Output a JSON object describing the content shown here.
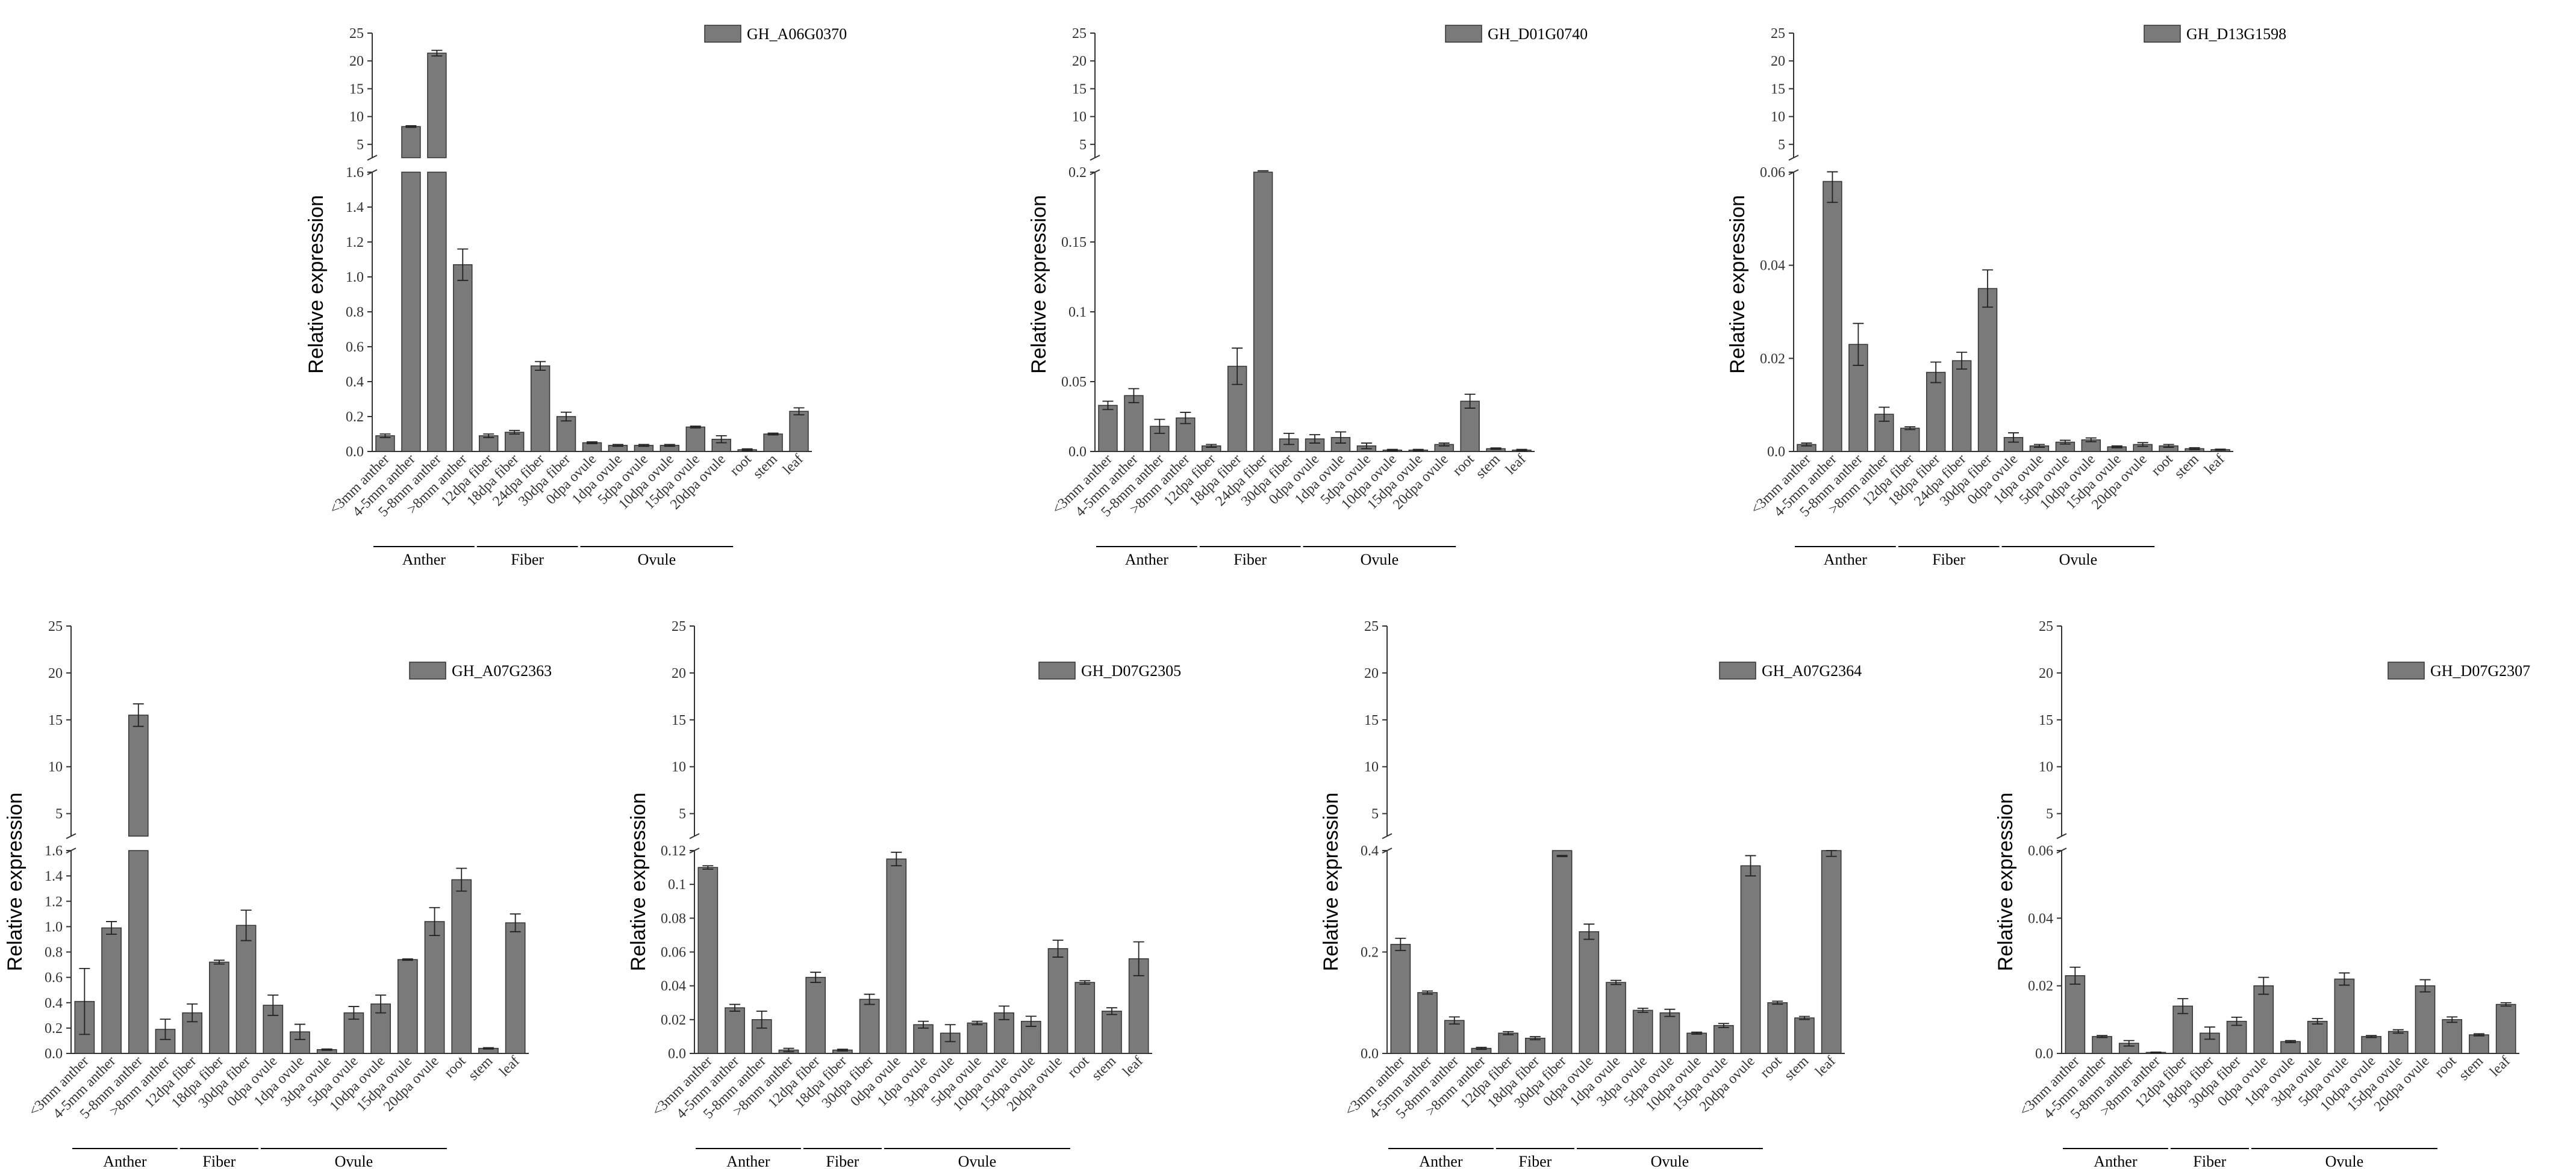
{
  "figure": {
    "ylabel": "Relative expression",
    "bar_color": "#7a7a7a",
    "axis_color": "#333333"
  },
  "chart_data": [
    {
      "type": "bar",
      "legend": "GH_A06G0370",
      "ylabel": "Relative expression",
      "categories": [
        "<3mm anther",
        "4-5mm anther",
        "5-8mm anther",
        ">8mm anther",
        "12dpa fiber",
        "18dpa fiber",
        "24dpa fiber",
        "30dpa fiber",
        "0dpa ovule",
        "1dpa ovule",
        "5dpa ovule",
        "10dpa ovule",
        "15dpa ovule",
        "20dpa ovule",
        "root",
        "stem",
        "leaf"
      ],
      "values": [
        0.09,
        8.2,
        21.4,
        1.07,
        0.09,
        0.11,
        0.49,
        0.2,
        0.05,
        0.035,
        0.035,
        0.035,
        0.14,
        0.07,
        0.01,
        0.1,
        0.23
      ],
      "errors": [
        0.01,
        0.15,
        0.5,
        0.09,
        0.01,
        0.01,
        0.025,
        0.025,
        0.005,
        0.005,
        0.005,
        0.005,
        0.005,
        0.02,
        0.005,
        0.005,
        0.02
      ],
      "axis_break": {
        "lower_ticks": [
          0.0,
          0.2,
          0.4,
          0.6,
          0.8,
          1.0,
          1.2,
          1.4,
          1.6
        ],
        "upper_ticks": [
          5,
          10,
          15,
          20,
          25
        ]
      },
      "groups": [
        {
          "label": "Anther",
          "start": 0,
          "end": 3
        },
        {
          "label": "Fiber",
          "start": 4,
          "end": 7
        },
        {
          "label": "Ovule",
          "start": 8,
          "end": 13
        }
      ]
    },
    {
      "type": "bar",
      "legend": "GH_D01G0740",
      "ylabel": "Relative expression",
      "categories": [
        "<3mm anther",
        "4-5mm anther",
        "5-8mm anther",
        ">8mm anther",
        "12dpa fiber",
        "18dpa fiber",
        "24dpa fiber",
        "30dpa fiber",
        "0dpa ovule",
        "1dpa ovule",
        "5dpa ovule",
        "10dpa ovule",
        "15dpa ovule",
        "20dpa ovule",
        "root",
        "stem",
        "leaf"
      ],
      "values": [
        0.033,
        0.04,
        0.018,
        0.024,
        0.004,
        0.061,
        0.243,
        0.009,
        0.009,
        0.01,
        0.004,
        0.001,
        0.001,
        0.005,
        0.036,
        0.002,
        0.001
      ],
      "errors": [
        0.003,
        0.005,
        0.005,
        0.004,
        0.001,
        0.013,
        0.003,
        0.004,
        0.003,
        0.004,
        0.002,
        0.0005,
        0.0005,
        0.001,
        0.005,
        0.0005,
        0.0005
      ],
      "axis_break": {
        "lower_ticks": [
          0.0,
          0.05,
          0.1,
          0.15,
          0.2
        ],
        "upper_ticks": [
          5,
          10,
          15,
          20,
          25
        ]
      },
      "groups": [
        {
          "label": "Anther",
          "start": 0,
          "end": 3
        },
        {
          "label": "Fiber",
          "start": 4,
          "end": 7
        },
        {
          "label": "Ovule",
          "start": 8,
          "end": 13
        }
      ]
    },
    {
      "type": "bar",
      "legend": "GH_D13G1598",
      "ylabel": "Relative expression",
      "categories": [
        "<3mm anther",
        "4-5mm anther",
        "5-8mm anther",
        ">8mm anther",
        "12dpa fiber",
        "18dpa fiber",
        "24dpa fiber",
        "30dpa fiber",
        "0dpa ovule",
        "1dpa ovule",
        "5dpa ovule",
        "10dpa ovule",
        "15dpa ovule",
        "20dpa ovule",
        "root",
        "stem",
        "leaf"
      ],
      "values": [
        0.0015,
        0.058,
        0.023,
        0.008,
        0.005,
        0.017,
        0.0195,
        0.035,
        0.003,
        0.0012,
        0.002,
        0.0025,
        0.001,
        0.0015,
        0.0012,
        0.0006,
        0.0004
      ],
      "errors": [
        0.0003,
        0.0045,
        0.0045,
        0.0015,
        0.0003,
        0.0022,
        0.0018,
        0.004,
        0.001,
        0.0003,
        0.0004,
        0.0004,
        0.0002,
        0.0004,
        0.0003,
        0.0002,
        0.0001
      ],
      "axis_break": {
        "lower_ticks": [
          0.0,
          0.02,
          0.04,
          0.06
        ],
        "upper_ticks": [
          5,
          10,
          15,
          20,
          25
        ]
      },
      "groups": [
        {
          "label": "Anther",
          "start": 0,
          "end": 3
        },
        {
          "label": "Fiber",
          "start": 4,
          "end": 7
        },
        {
          "label": "Ovule",
          "start": 8,
          "end": 13
        }
      ]
    },
    {
      "type": "bar",
      "legend": "GH_A07G2363",
      "ylabel": "Relative expression",
      "categories": [
        "<3mm anther",
        "4-5mm anther",
        "5-8mm anther",
        ">8mm anther",
        "12dpa fiber",
        "18dpa fiber",
        "30dpa fiber",
        "0dpa ovule",
        "1dpa ovule",
        "3dpa ovule",
        "5dpa ovule",
        "10dpa ovule",
        "15dpa ovule",
        "20dpa ovule",
        "root",
        "stem",
        "leaf"
      ],
      "values": [
        0.41,
        0.99,
        15.5,
        0.19,
        0.32,
        0.72,
        1.01,
        0.38,
        0.17,
        0.03,
        0.32,
        0.39,
        0.74,
        1.04,
        1.37,
        0.04,
        1.03
      ],
      "errors": [
        0.26,
        0.05,
        1.2,
        0.08,
        0.07,
        0.015,
        0.12,
        0.08,
        0.06,
        0.005,
        0.05,
        0.07,
        0.005,
        0.11,
        0.09,
        0.005,
        0.07
      ],
      "axis_break": {
        "lower_ticks": [
          0.0,
          0.2,
          0.4,
          0.6,
          0.8,
          1.0,
          1.2,
          1.4,
          1.6
        ],
        "upper_ticks": [
          5,
          10,
          15,
          20,
          25
        ]
      },
      "groups": [
        {
          "label": "Anther",
          "start": 0,
          "end": 3
        },
        {
          "label": "Fiber",
          "start": 4,
          "end": 6
        },
        {
          "label": "Ovule",
          "start": 7,
          "end": 13
        }
      ]
    },
    {
      "type": "bar",
      "legend": "GH_D07G2305",
      "ylabel": "Relative expression",
      "categories": [
        "<3mm anther",
        "4-5mm anther",
        "5-8mm anther",
        ">8mm anther",
        "12dpa fiber",
        "18dpa fiber",
        "30dpa fiber",
        "0dpa ovule",
        "1dpa ovule",
        "3dpa ovule",
        "5dpa ovule",
        "10dpa ovule",
        "15dpa ovule",
        "20dpa ovule",
        "root",
        "stem",
        "leaf"
      ],
      "values": [
        0.11,
        0.027,
        0.02,
        0.002,
        0.045,
        0.002,
        0.032,
        0.115,
        0.017,
        0.012,
        0.018,
        0.024,
        0.019,
        0.062,
        0.042,
        0.025,
        0.056
      ],
      "errors": [
        0.001,
        0.002,
        0.005,
        0.001,
        0.003,
        0.0005,
        0.003,
        0.004,
        0.002,
        0.005,
        0.001,
        0.004,
        0.003,
        0.005,
        0.001,
        0.002,
        0.01
      ],
      "axis_break": {
        "lower_ticks": [
          0.0,
          0.02,
          0.04,
          0.06,
          0.08,
          0.1,
          0.12
        ],
        "upper_ticks": [
          5,
          10,
          15,
          20,
          25
        ]
      },
      "groups": [
        {
          "label": "Anther",
          "start": 0,
          "end": 3
        },
        {
          "label": "Fiber",
          "start": 4,
          "end": 6
        },
        {
          "label": "Ovule",
          "start": 7,
          "end": 13
        }
      ]
    },
    {
      "type": "bar",
      "legend": "GH_A07G2364",
      "ylabel": "Relative expression",
      "categories": [
        "<3mm anther",
        "4-5mm anther",
        "5-8mm anther",
        ">8mm anther",
        "12dpa fiber",
        "18dpa fiber",
        "30dpa fiber",
        "0dpa ovule",
        "1dpa ovule",
        "3dpa ovule",
        "5dpa ovule",
        "10dpa ovule",
        "15dpa ovule",
        "20dpa ovule",
        "root",
        "stem",
        "leaf"
      ],
      "values": [
        0.215,
        0.12,
        0.065,
        0.01,
        0.04,
        0.03,
        0.48,
        0.24,
        0.14,
        0.085,
        0.08,
        0.04,
        0.055,
        0.37,
        0.1,
        0.07,
        0.42
      ],
      "errors": [
        0.012,
        0.003,
        0.007,
        0.002,
        0.003,
        0.003,
        0.06,
        0.015,
        0.004,
        0.004,
        0.007,
        0.002,
        0.004,
        0.02,
        0.003,
        0.003,
        0.02
      ],
      "axis_break": {
        "lower_ticks": [
          0.0,
          0.2,
          0.4
        ],
        "upper_ticks": [
          5,
          10,
          15,
          20,
          25
        ]
      },
      "groups": [
        {
          "label": "Anther",
          "start": 0,
          "end": 3
        },
        {
          "label": "Fiber",
          "start": 4,
          "end": 6
        },
        {
          "label": "Ovule",
          "start": 7,
          "end": 13
        }
      ]
    },
    {
      "type": "bar",
      "legend": "GH_D07G2307",
      "ylabel": "Relative expression",
      "categories": [
        "<3mm anther",
        "4-5mm anther",
        "5-8mm anther",
        ">8mm anther",
        "12dpa fiber",
        "18dpa fiber",
        "30dpa fiber",
        "0dpa ovule",
        "1dpa ovule",
        "3dpa ovule",
        "5dpa ovule",
        "10dpa ovule",
        "15dpa ovule",
        "20dpa ovule",
        "root",
        "stem",
        "leaf"
      ],
      "values": [
        0.023,
        0.005,
        0.003,
        0.0003,
        0.014,
        0.006,
        0.0095,
        0.02,
        0.0035,
        0.0095,
        0.022,
        0.005,
        0.0065,
        0.02,
        0.01,
        0.0055,
        0.0145
      ],
      "errors": [
        0.0025,
        0.0003,
        0.0008,
        0.0001,
        0.0022,
        0.0018,
        0.0012,
        0.0025,
        0.0003,
        0.0008,
        0.0018,
        0.0003,
        0.0005,
        0.0018,
        0.0008,
        0.0003,
        0.0005
      ],
      "axis_break": {
        "lower_ticks": [
          0.0,
          0.02,
          0.04,
          0.06
        ],
        "upper_ticks": [
          5,
          10,
          15,
          20,
          25
        ]
      },
      "groups": [
        {
          "label": "Anther",
          "start": 0,
          "end": 3
        },
        {
          "label": "Fiber",
          "start": 4,
          "end": 6
        },
        {
          "label": "Ovule",
          "start": 7,
          "end": 13
        }
      ]
    }
  ]
}
